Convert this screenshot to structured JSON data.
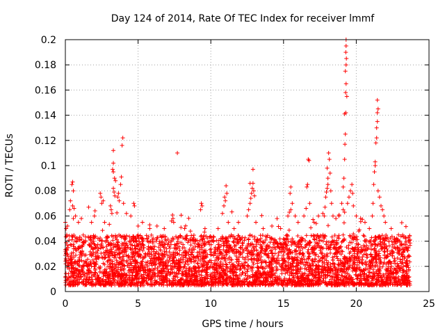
{
  "chart_data": {
    "type": "scatter",
    "title": "Day 124 of 2014, Rate Of TEC Index for receiver lmmf",
    "xlabel": "GPS time / hours",
    "ylabel": "ROTI / TECUs",
    "xlim": [
      0,
      25
    ],
    "ylim": [
      0,
      0.2
    ],
    "x_ticks": [
      0,
      5,
      10,
      15,
      20,
      25
    ],
    "y_ticks": [
      0,
      0.02,
      0.04,
      0.06,
      0.08,
      0.1,
      0.12,
      0.14,
      0.16,
      0.18,
      0.2
    ],
    "x_tick_labels": [
      "0",
      "5",
      "10",
      "15",
      "20",
      "25"
    ],
    "y_tick_labels": [
      "0",
      "0.02",
      "0.04",
      "0.06",
      "0.08",
      "0.1",
      "0.12",
      "0.14",
      "0.16",
      "0.18",
      "0.2"
    ],
    "grid": true,
    "marker": "+",
    "color": "#ff0000",
    "series": [
      {
        "name": "ROTI",
        "background_band": {
          "x_range": [
            0,
            23.7
          ],
          "y_typical_range": [
            0.005,
            0.045
          ],
          "count": 4200,
          "seed": 124
        },
        "points": [
          [
            0.0,
            0.055
          ],
          [
            0.05,
            0.05
          ],
          [
            0.1,
            0.045
          ],
          [
            0.15,
            0.052
          ],
          [
            0.3,
            0.065
          ],
          [
            0.35,
            0.072
          ],
          [
            0.45,
            0.085
          ],
          [
            0.5,
            0.087
          ],
          [
            0.55,
            0.08
          ],
          [
            0.5,
            0.068
          ],
          [
            0.6,
            0.066
          ],
          [
            0.55,
            0.058
          ],
          [
            0.7,
            0.06
          ],
          [
            0.9,
            0.055
          ],
          [
            1.1,
            0.058
          ],
          [
            1.6,
            0.067
          ],
          [
            1.8,
            0.055
          ],
          [
            2.0,
            0.06
          ],
          [
            2.4,
            0.078
          ],
          [
            2.45,
            0.075
          ],
          [
            2.5,
            0.07
          ],
          [
            2.6,
            0.072
          ],
          [
            2.7,
            0.055
          ],
          [
            3.1,
            0.068
          ],
          [
            3.15,
            0.065
          ],
          [
            3.2,
            0.062
          ],
          [
            3.3,
            0.082
          ],
          [
            3.35,
            0.079
          ],
          [
            3.4,
            0.076
          ],
          [
            3.25,
            0.097
          ],
          [
            3.3,
            0.095
          ],
          [
            3.38,
            0.09
          ],
          [
            3.45,
            0.088
          ],
          [
            3.3,
            0.112
          ],
          [
            3.3,
            0.102
          ],
          [
            3.6,
            0.075
          ],
          [
            3.65,
            0.078
          ],
          [
            3.7,
            0.072
          ],
          [
            3.8,
            0.085
          ],
          [
            3.85,
            0.091
          ],
          [
            3.95,
            0.122
          ],
          [
            3.9,
            0.116
          ],
          [
            4.0,
            0.07
          ],
          [
            4.2,
            0.062
          ],
          [
            4.5,
            0.06
          ],
          [
            4.7,
            0.07
          ],
          [
            4.75,
            0.068
          ],
          [
            5.0,
            0.052
          ],
          [
            5.3,
            0.055
          ],
          [
            5.8,
            0.05
          ],
          [
            6.3,
            0.052
          ],
          [
            6.8,
            0.05
          ],
          [
            7.3,
            0.056
          ],
          [
            7.4,
            0.058
          ],
          [
            7.45,
            0.055
          ],
          [
            7.7,
            0.11
          ],
          [
            8.2,
            0.05
          ],
          [
            8.6,
            0.048
          ],
          [
            9.3,
            0.065
          ],
          [
            9.35,
            0.07
          ],
          [
            9.4,
            0.068
          ],
          [
            9.6,
            0.05
          ],
          [
            10.5,
            0.05
          ],
          [
            10.8,
            0.062
          ],
          [
            10.9,
            0.068
          ],
          [
            10.95,
            0.075
          ],
          [
            11.0,
            0.072
          ],
          [
            11.05,
            0.084
          ],
          [
            11.1,
            0.078
          ],
          [
            11.2,
            0.055
          ],
          [
            11.6,
            0.05
          ],
          [
            11.9,
            0.055
          ],
          [
            12.5,
            0.06
          ],
          [
            12.6,
            0.065
          ],
          [
            12.7,
            0.07
          ],
          [
            12.75,
            0.074
          ],
          [
            12.8,
            0.078
          ],
          [
            12.85,
            0.082
          ],
          [
            12.9,
            0.086
          ],
          [
            12.95,
            0.08
          ],
          [
            12.9,
            0.097
          ],
          [
            12.7,
            0.086
          ],
          [
            13.0,
            0.076
          ],
          [
            13.1,
            0.055
          ],
          [
            13.6,
            0.05
          ],
          [
            14.2,
            0.052
          ],
          [
            14.8,
            0.05
          ],
          [
            15.3,
            0.06
          ],
          [
            15.4,
            0.063
          ],
          [
            15.5,
            0.065
          ],
          [
            15.45,
            0.078
          ],
          [
            15.5,
            0.083
          ],
          [
            15.6,
            0.07
          ],
          [
            15.8,
            0.06
          ],
          [
            16.0,
            0.055
          ],
          [
            16.4,
            0.06
          ],
          [
            16.55,
            0.066
          ],
          [
            16.6,
            0.083
          ],
          [
            16.65,
            0.085
          ],
          [
            16.7,
            0.105
          ],
          [
            16.75,
            0.104
          ],
          [
            16.8,
            0.07
          ],
          [
            17.1,
            0.055
          ],
          [
            17.4,
            0.06
          ],
          [
            17.7,
            0.062
          ],
          [
            17.8,
            0.06
          ],
          [
            17.85,
            0.067
          ],
          [
            17.9,
            0.075
          ],
          [
            17.95,
            0.079
          ],
          [
            18.0,
            0.082
          ],
          [
            18.05,
            0.085
          ],
          [
            18.0,
            0.098
          ],
          [
            18.05,
            0.09
          ],
          [
            18.1,
            0.11
          ],
          [
            18.15,
            0.105
          ],
          [
            18.2,
            0.094
          ],
          [
            18.25,
            0.08
          ],
          [
            18.3,
            0.07
          ],
          [
            18.4,
            0.06
          ],
          [
            18.6,
            0.058
          ],
          [
            18.8,
            0.06
          ],
          [
            19.0,
            0.07
          ],
          [
            19.1,
            0.083
          ],
          [
            19.15,
            0.09
          ],
          [
            19.2,
            0.105
          ],
          [
            19.22,
            0.117
          ],
          [
            19.25,
            0.125
          ],
          [
            19.2,
            0.141
          ],
          [
            19.28,
            0.142
          ],
          [
            19.27,
            0.158
          ],
          [
            19.3,
            0.165
          ],
          [
            19.25,
            0.175
          ],
          [
            19.3,
            0.18
          ],
          [
            19.28,
            0.19
          ],
          [
            19.3,
            0.195
          ],
          [
            19.3,
            0.2
          ],
          [
            19.32,
            0.185
          ],
          [
            19.35,
            0.155
          ],
          [
            19.1,
            0.065
          ],
          [
            19.2,
            0.063
          ],
          [
            19.4,
            0.07
          ],
          [
            19.5,
            0.075
          ],
          [
            19.6,
            0.08
          ],
          [
            19.7,
            0.085
          ],
          [
            19.75,
            0.078
          ],
          [
            19.8,
            0.068
          ],
          [
            20.0,
            0.06
          ],
          [
            20.3,
            0.058
          ],
          [
            20.6,
            0.055
          ],
          [
            20.9,
            0.05
          ],
          [
            21.1,
            0.06
          ],
          [
            21.15,
            0.07
          ],
          [
            21.2,
            0.085
          ],
          [
            21.25,
            0.095
          ],
          [
            21.3,
            0.103
          ],
          [
            21.35,
            0.118
          ],
          [
            21.4,
            0.122
          ],
          [
            21.4,
            0.13
          ],
          [
            21.45,
            0.135
          ],
          [
            21.45,
            0.142
          ],
          [
            21.5,
            0.145
          ],
          [
            21.45,
            0.152
          ],
          [
            21.3,
            0.1
          ],
          [
            21.5,
            0.08
          ],
          [
            21.6,
            0.075
          ],
          [
            21.7,
            0.068
          ],
          [
            21.8,
            0.065
          ],
          [
            21.9,
            0.06
          ],
          [
            22.0,
            0.055
          ],
          [
            22.4,
            0.05
          ],
          [
            22.9,
            0.045
          ],
          [
            23.4,
            0.042
          ],
          [
            23.6,
            0.04
          ]
        ]
      }
    ]
  }
}
